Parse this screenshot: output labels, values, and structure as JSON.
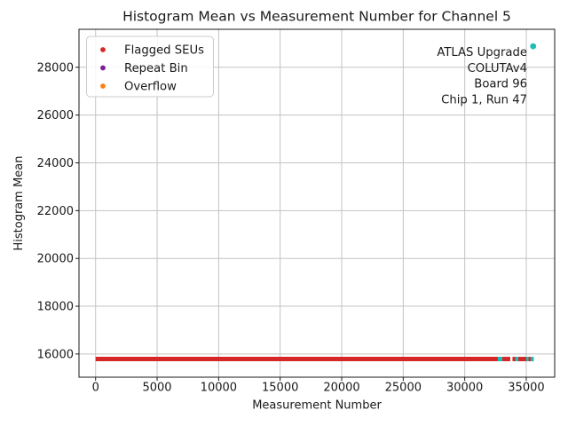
{
  "chart_data": {
    "type": "scatter",
    "title": "Histogram Mean vs Measurement Number for Channel 5",
    "xlabel": "Measurement Number",
    "ylabel": "Histogram Mean",
    "xlim": [
      -1350,
      37310
    ],
    "ylim": [
      15030,
      29590
    ],
    "xticks": [
      0,
      5000,
      10000,
      15000,
      20000,
      25000,
      30000,
      35000
    ],
    "yticks": [
      16000,
      18000,
      20000,
      22000,
      24000,
      26000,
      28000
    ],
    "grid": true,
    "grid_color": "#c3c3c3",
    "background": "#ffffff",
    "spine_color": "#1a1a1a",
    "legend": {
      "position": "upper-left",
      "items": [
        {
          "label": "Flagged SEUs",
          "color": "#d62728"
        },
        {
          "label": "Repeat Bin",
          "color": "#7e1e9c"
        },
        {
          "label": "Overflow",
          "color": "#ff7f0e"
        }
      ]
    },
    "annotation": {
      "anchor": "top-right",
      "lines": [
        "ATLAS Upgrade",
        "COLUTAv4",
        "Board 96",
        "Chip 1, Run 47"
      ]
    },
    "series": [
      {
        "name": "Flagged SEUs",
        "color": "#d62728",
        "marker": "dot",
        "baseline_y": 15790,
        "x_segments": [
          [
            0,
            32690
          ],
          [
            33050,
            33700
          ],
          [
            33880,
            34100
          ],
          [
            34350,
            35000
          ],
          [
            35180,
            35360
          ]
        ],
        "points": []
      },
      {
        "name": "Histogram Mean",
        "color": "#1dbcb4",
        "marker": "dot",
        "baseline_y": 15790,
        "x_segments": [
          [
            32690,
            33050
          ],
          [
            34100,
            34350
          ],
          [
            35000,
            35180
          ],
          [
            35360,
            35615
          ]
        ],
        "points": [
          [
            35560,
            28880
          ]
        ]
      },
      {
        "name": "Repeat Bin",
        "color": "#7e1e9c",
        "marker": "dot",
        "baseline_y": null,
        "x_segments": [],
        "points": []
      },
      {
        "name": "Overflow",
        "color": "#ff7f0e",
        "marker": "dot",
        "baseline_y": null,
        "x_segments": [],
        "points": []
      }
    ]
  }
}
